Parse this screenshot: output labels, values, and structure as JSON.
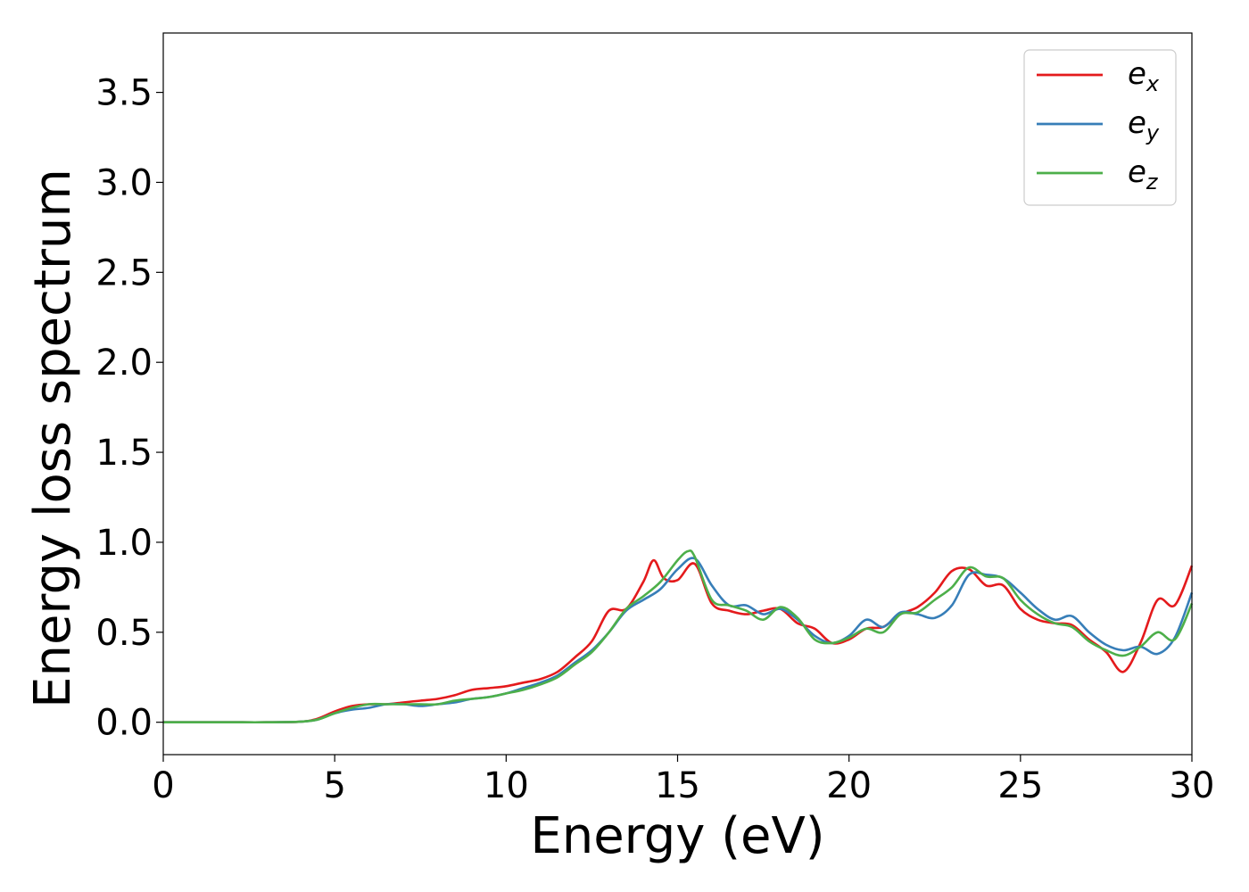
{
  "chart_data": {
    "type": "line",
    "title": "",
    "xlabel": "Energy (eV)",
    "ylabel": "Energy loss spectrum",
    "xlim": [
      0,
      30
    ],
    "ylim": [
      -0.18,
      3.83
    ],
    "xticks": [
      0,
      5,
      10,
      15,
      20,
      25,
      30
    ],
    "xtick_labels": [
      "0",
      "5",
      "10",
      "15",
      "20",
      "25",
      "30"
    ],
    "yticks": [
      0.0,
      0.5,
      1.0,
      1.5,
      2.0,
      2.5,
      3.0,
      3.5
    ],
    "ytick_labels": [
      "0.0",
      "0.5",
      "1.0",
      "1.5",
      "2.0",
      "2.5",
      "3.0",
      "3.5"
    ],
    "grid": false,
    "legend_position": "top-right",
    "series": [
      {
        "name": "e_x",
        "legend_main": "e",
        "legend_sub": "x",
        "color": "#e41a1c",
        "x": [
          0,
          1,
          2,
          3,
          4,
          4.5,
          5,
          5.5,
          6,
          6.5,
          7,
          7.5,
          8,
          8.5,
          9,
          9.5,
          10,
          10.5,
          11,
          11.5,
          12,
          12.5,
          13,
          13.5,
          14,
          14.3,
          14.6,
          15,
          15.5,
          16,
          16.5,
          17,
          17.5,
          18,
          18.5,
          19,
          19.5,
          20,
          20.5,
          21,
          21.5,
          22,
          22.5,
          23,
          23.5,
          24,
          24.5,
          25,
          25.5,
          26,
          26.5,
          27,
          27.5,
          28,
          28.5,
          29,
          29.5,
          30
        ],
        "y": [
          0.0,
          0.0,
          0.0,
          0.0,
          0.003,
          0.02,
          0.06,
          0.09,
          0.1,
          0.1,
          0.11,
          0.12,
          0.13,
          0.15,
          0.18,
          0.19,
          0.2,
          0.22,
          0.24,
          0.28,
          0.36,
          0.45,
          0.62,
          0.63,
          0.78,
          0.9,
          0.8,
          0.79,
          0.88,
          0.66,
          0.62,
          0.6,
          0.62,
          0.63,
          0.55,
          0.52,
          0.44,
          0.46,
          0.52,
          0.53,
          0.6,
          0.64,
          0.72,
          0.84,
          0.85,
          0.76,
          0.76,
          0.63,
          0.57,
          0.55,
          0.54,
          0.46,
          0.39,
          0.28,
          0.44,
          0.68,
          0.65,
          0.87
        ]
      },
      {
        "name": "e_y",
        "legend_main": "e",
        "legend_sub": "y",
        "color": "#377eb8",
        "x": [
          0,
          1,
          2,
          3,
          4,
          4.5,
          5,
          5.5,
          6,
          6.5,
          7,
          7.5,
          8,
          8.5,
          9,
          9.5,
          10,
          10.5,
          11,
          11.5,
          12,
          12.5,
          13,
          13.5,
          14,
          14.5,
          15,
          15.5,
          16,
          16.5,
          17,
          17.5,
          18,
          18.5,
          19,
          19.5,
          20,
          20.5,
          21,
          21.5,
          22,
          22.5,
          23,
          23.5,
          24,
          24.5,
          25,
          25.5,
          26,
          26.5,
          27,
          27.5,
          28,
          28.5,
          29,
          29.5,
          30
        ],
        "y": [
          0.0,
          0.0,
          0.0,
          0.0,
          0.003,
          0.015,
          0.05,
          0.07,
          0.08,
          0.1,
          0.1,
          0.09,
          0.1,
          0.11,
          0.13,
          0.14,
          0.16,
          0.19,
          0.22,
          0.26,
          0.33,
          0.4,
          0.5,
          0.62,
          0.68,
          0.74,
          0.85,
          0.91,
          0.76,
          0.65,
          0.65,
          0.6,
          0.63,
          0.57,
          0.48,
          0.44,
          0.48,
          0.57,
          0.53,
          0.61,
          0.6,
          0.58,
          0.65,
          0.82,
          0.82,
          0.8,
          0.72,
          0.63,
          0.57,
          0.59,
          0.5,
          0.43,
          0.4,
          0.42,
          0.38,
          0.47,
          0.72
        ]
      },
      {
        "name": "e_z",
        "legend_main": "e",
        "legend_sub": "z",
        "color": "#4daf4a",
        "x": [
          0,
          1,
          2,
          3,
          4,
          4.5,
          5,
          5.5,
          6,
          6.5,
          7,
          7.5,
          8,
          8.5,
          9,
          9.5,
          10,
          10.5,
          11,
          11.5,
          12,
          12.5,
          13,
          13.5,
          14,
          14.5,
          15,
          15.3,
          15.5,
          16,
          16.5,
          17,
          17.5,
          18,
          18.5,
          19,
          19.5,
          20,
          20.5,
          21,
          21.5,
          22,
          22.5,
          23,
          23.5,
          24,
          24.5,
          25,
          25.5,
          26,
          26.5,
          27,
          27.5,
          28,
          28.5,
          29,
          29.5,
          30
        ],
        "y": [
          0.0,
          0.0,
          0.0,
          0.0,
          0.003,
          0.015,
          0.05,
          0.08,
          0.1,
          0.1,
          0.1,
          0.1,
          0.1,
          0.12,
          0.13,
          0.14,
          0.16,
          0.18,
          0.21,
          0.25,
          0.32,
          0.39,
          0.5,
          0.63,
          0.7,
          0.78,
          0.9,
          0.95,
          0.92,
          0.68,
          0.65,
          0.62,
          0.57,
          0.64,
          0.58,
          0.46,
          0.44,
          0.47,
          0.52,
          0.5,
          0.6,
          0.61,
          0.68,
          0.75,
          0.86,
          0.81,
          0.8,
          0.68,
          0.6,
          0.55,
          0.53,
          0.45,
          0.4,
          0.37,
          0.42,
          0.5,
          0.46,
          0.66
        ]
      }
    ]
  }
}
